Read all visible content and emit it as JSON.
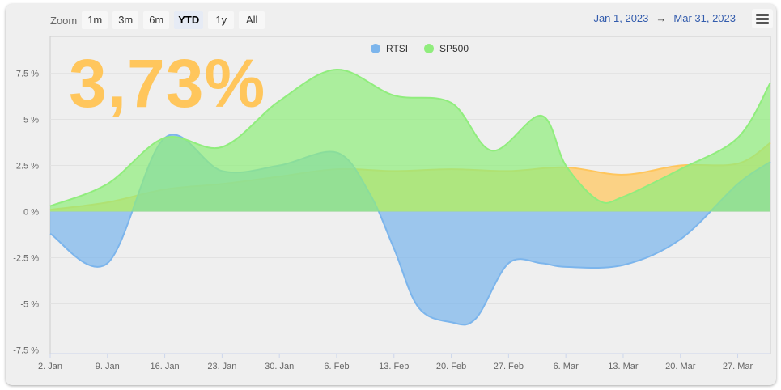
{
  "toolbar": {
    "zoom_label": "Zoom",
    "buttons": [
      {
        "label": "1m",
        "active": false
      },
      {
        "label": "3m",
        "active": false
      },
      {
        "label": "6m",
        "active": false
      },
      {
        "label": "YTD",
        "active": true
      },
      {
        "label": "1y",
        "active": false
      },
      {
        "label": "All",
        "active": false
      }
    ]
  },
  "range": {
    "from": "Jan 1, 2023",
    "arrow": "→",
    "to": "Mar 31, 2023"
  },
  "menu_icon": "hamburger-menu-icon",
  "highlight_value": "3,73%",
  "colors": {
    "rtsi": "#7cb5ec",
    "sp500": "#90ed7d",
    "third": "#ffc65c",
    "highlight": "#ffc65c"
  },
  "chart_data": {
    "type": "area",
    "x_labels": [
      "2. Jan",
      "9. Jan",
      "16. Jan",
      "23. Jan",
      "30. Jan",
      "6. Feb",
      "13. Feb",
      "20. Feb",
      "27. Feb",
      "6. Mar",
      "13. Mar",
      "20. Mar",
      "27. Mar"
    ],
    "y_ticks": [
      -7.5,
      -5,
      -2.5,
      0,
      2.5,
      5,
      7.5
    ],
    "y_tick_labels": [
      "-7.5 %",
      "-5 %",
      "-2.5 %",
      "0 %",
      "2.5 %",
      "5 %",
      "7.5 %"
    ],
    "ylim": [
      -7.7,
      9.5
    ],
    "xlim": [
      0,
      88
    ],
    "legend_position": "top-center",
    "series": [
      {
        "name": "",
        "color_key": "third",
        "x": [
          0,
          7,
          14,
          21,
          28,
          35,
          42,
          49,
          56,
          63,
          70,
          77,
          84,
          88
        ],
        "values": [
          0.1,
          0.5,
          1.2,
          1.5,
          1.9,
          2.3,
          2.2,
          2.3,
          2.2,
          2.4,
          2.0,
          2.5,
          2.6,
          3.73
        ]
      },
      {
        "name": "RTSI",
        "color_key": "rtsi",
        "x": [
          0,
          7,
          14,
          21,
          28,
          35,
          39,
          42,
          45,
          49,
          52,
          56,
          60,
          63,
          70,
          77,
          84,
          88
        ],
        "values": [
          -1.2,
          -2.8,
          4.0,
          2.2,
          2.5,
          3.2,
          1.0,
          -2.0,
          -5.2,
          -6.0,
          -5.8,
          -2.8,
          -2.8,
          -3.0,
          -2.9,
          -1.5,
          1.5,
          2.7
        ]
      },
      {
        "name": "SP500",
        "color_key": "sp500",
        "x": [
          0,
          7,
          14,
          21,
          28,
          35,
          42,
          49,
          54,
          60,
          63,
          67,
          70,
          77,
          84,
          88
        ],
        "values": [
          0.3,
          1.5,
          4.0,
          3.5,
          6.0,
          7.7,
          6.3,
          5.9,
          3.3,
          5.2,
          2.5,
          0.6,
          0.8,
          2.3,
          4.0,
          7.0
        ]
      }
    ]
  }
}
